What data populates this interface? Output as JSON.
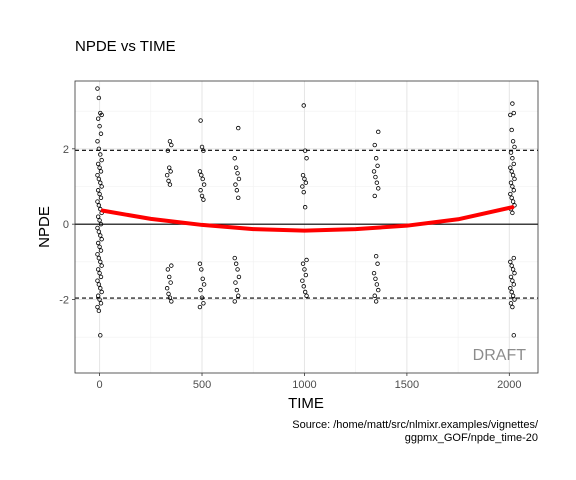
{
  "chart_data": {
    "type": "scatter",
    "title": "NPDE vs TIME",
    "xlabel": "TIME",
    "ylabel": "NPDE",
    "xlim": [
      -120,
      2140
    ],
    "ylim": [
      -3.95,
      3.8
    ],
    "xticks": [
      0,
      500,
      1000,
      1500,
      2000
    ],
    "yticks": [
      -2,
      0,
      2
    ],
    "xtick_labels": [
      "0",
      "500",
      "1000",
      "1500",
      "2000"
    ],
    "ytick_labels": [
      "-2",
      "0",
      "2"
    ],
    "grid": true,
    "reference_lines": {
      "solid": [
        0
      ],
      "dashed": [
        -1.96,
        1.96
      ]
    },
    "point_groups": [
      {
        "x": 0,
        "y": [
          3.6,
          3.35,
          2.95,
          2.9,
          2.8,
          2.6,
          2.4,
          2.2,
          2.0,
          1.85,
          1.7,
          1.6,
          1.5,
          1.4,
          1.3,
          1.2,
          1.1,
          1.0,
          0.9,
          0.8,
          0.7,
          0.6,
          0.5,
          0.4,
          0.3,
          0.2,
          0.1,
          0.0,
          -0.1,
          -0.2,
          -0.3,
          -0.4,
          -0.5,
          -0.6,
          -0.7,
          -0.8,
          -0.9,
          -1.0,
          -1.1,
          -1.2,
          -1.3,
          -1.4,
          -1.5,
          -1.6,
          -1.7,
          -1.8,
          -1.9,
          -2.0,
          -2.1,
          -2.2,
          -2.3,
          -2.95
        ]
      },
      {
        "x": 340,
        "y": [
          2.2,
          2.1,
          1.95,
          1.5,
          1.4,
          1.3,
          1.15,
          1.05,
          -1.1,
          -1.2,
          -1.4,
          -1.55,
          -1.7,
          -1.85,
          -1.95,
          -2.05
        ]
      },
      {
        "x": 500,
        "y": [
          2.75,
          2.05,
          1.95,
          1.4,
          1.3,
          1.2,
          1.05,
          0.9,
          0.75,
          0.65,
          -1.05,
          -1.2,
          -1.45,
          -1.6,
          -1.75,
          -1.95,
          -2.1,
          -2.2
        ]
      },
      {
        "x": 670,
        "y": [
          2.55,
          1.75,
          1.5,
          1.35,
          1.2,
          1.05,
          0.9,
          0.7,
          -0.9,
          -1.05,
          -1.2,
          -1.4,
          -1.55,
          -1.75,
          -1.9,
          -2.05
        ]
      },
      {
        "x": 1000,
        "y": [
          3.15,
          1.95,
          1.75,
          1.3,
          1.2,
          1.1,
          1.0,
          0.85,
          0.45,
          -0.95,
          -1.05,
          -1.2,
          -1.35,
          -1.5,
          -1.65,
          -1.8,
          -1.9
        ]
      },
      {
        "x": 1350,
        "y": [
          2.45,
          2.1,
          1.75,
          1.55,
          1.4,
          1.25,
          1.1,
          0.95,
          0.75,
          -0.85,
          -1.05,
          -1.3,
          -1.45,
          -1.6,
          -1.75,
          -1.9,
          -2.05
        ]
      },
      {
        "x": 2015,
        "y": [
          3.2,
          2.95,
          2.9,
          2.5,
          2.2,
          2.05,
          1.9,
          1.75,
          1.6,
          1.5,
          1.4,
          1.3,
          1.2,
          1.1,
          1.0,
          0.9,
          0.8,
          0.7,
          0.6,
          0.5,
          0.4,
          0.3,
          -0.9,
          -1.0,
          -1.1,
          -1.2,
          -1.3,
          -1.4,
          -1.5,
          -1.6,
          -1.7,
          -1.8,
          -1.9,
          -2.0,
          -2.1,
          -2.2,
          -2.95
        ]
      }
    ],
    "trend_line": {
      "color": "#ff0000",
      "points": [
        [
          15,
          0.36
        ],
        [
          250,
          0.14
        ],
        [
          500,
          -0.02
        ],
        [
          750,
          -0.13
        ],
        [
          1000,
          -0.17
        ],
        [
          1250,
          -0.13
        ],
        [
          1500,
          -0.04
        ],
        [
          1750,
          0.13
        ],
        [
          2015,
          0.45
        ]
      ]
    },
    "watermark": "DRAFT",
    "caption": [
      "Source: /home/matt/src/nlmixr.examples/vignettes/",
      "ggpmx_GOF/npde_time-20"
    ]
  }
}
